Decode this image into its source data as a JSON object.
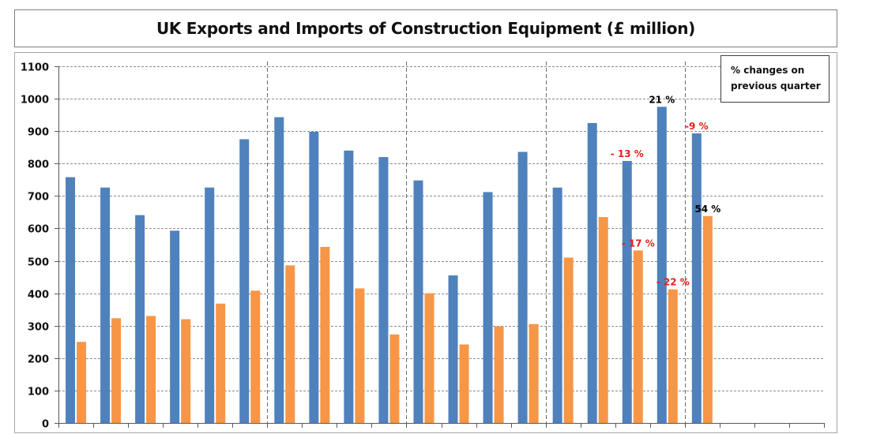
{
  "chart_data": {
    "type": "bar",
    "title": "UK Exports and Imports of Construction Equipment (£ million)",
    "note": "% changes on previous quarter",
    "ylim": [
      0,
      1100
    ],
    "yticks": [
      0,
      100,
      200,
      300,
      400,
      500,
      600,
      700,
      800,
      900,
      1000,
      1100
    ],
    "grid": true,
    "n_slots": 22,
    "group_separators_after": [
      6,
      10,
      14,
      18
    ],
    "series": [
      {
        "color": "#4f81bd",
        "values": [
          758,
          726,
          641,
          593,
          726,
          875,
          943,
          898,
          840,
          820,
          748,
          455,
          712,
          836,
          726,
          925,
          808,
          975,
          893
        ]
      },
      {
        "color": "#f79646",
        "values": [
          250,
          323,
          330,
          320,
          368,
          408,
          486,
          543,
          415,
          273,
          400,
          242,
          298,
          305,
          510,
          635,
          532,
          412,
          638
        ]
      }
    ],
    "annotations": [
      {
        "text": "21 %",
        "series": 0,
        "index": 17,
        "color": "#000000"
      },
      {
        "text": "- 13 %",
        "series": 0,
        "index": 16,
        "color": "#e0201a"
      },
      {
        "text": "-9 %",
        "series": 0,
        "index": 18,
        "color": "#e0201a"
      },
      {
        "text": "- 17 %",
        "series": 1,
        "index": 16,
        "color": "#e0201a"
      },
      {
        "text": "- 22 %",
        "series": 1,
        "index": 17,
        "color": "#e0201a"
      },
      {
        "text": "54 %",
        "series": 1,
        "index": 18,
        "color": "#000000"
      }
    ]
  }
}
